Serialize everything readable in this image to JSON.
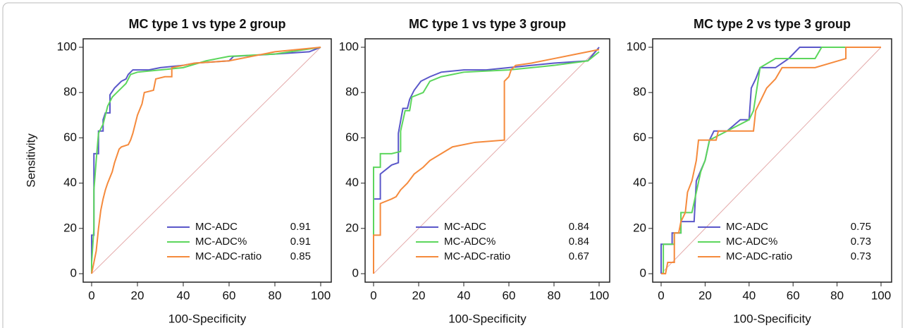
{
  "chart_data": [
    {
      "type": "line",
      "title": "MC type 1 vs type 2 group",
      "xlabel": "100-Specificity",
      "ylabel": "Sensitivity",
      "xlim": [
        0,
        100
      ],
      "ylim": [
        0,
        100
      ],
      "xticks": [
        0,
        20,
        40,
        60,
        80,
        100
      ],
      "yticks": [
        0,
        20,
        40,
        60,
        80,
        100
      ],
      "legend": "lower right",
      "series": [
        {
          "name": "MC-ADC",
          "color": "#5a57c9",
          "auc": 0.91,
          "x": [
            0,
            0,
            1,
            1,
            3,
            3,
            5,
            5,
            6,
            8,
            8,
            10,
            12,
            13,
            15,
            16,
            18,
            25,
            30,
            40,
            45,
            60,
            62,
            80,
            95,
            100
          ],
          "values": [
            0,
            17,
            17,
            53,
            53,
            63,
            63,
            68,
            71,
            71,
            79,
            82,
            84,
            85,
            86,
            88,
            90,
            90,
            91,
            92,
            93,
            94,
            96,
            97,
            98,
            100
          ]
        },
        {
          "name": "MC-ADC%",
          "color": "#5cd65c",
          "auc": 0.91,
          "x": [
            0,
            0,
            1,
            1,
            2,
            3,
            5,
            7,
            9,
            11,
            13,
            15,
            17,
            20,
            30,
            40,
            50,
            60,
            80,
            100
          ],
          "values": [
            0,
            5,
            20,
            37,
            50,
            62,
            66,
            74,
            78,
            80,
            82,
            84,
            88,
            89,
            90,
            91,
            94,
            96,
            97,
            100
          ]
        },
        {
          "name": "MC-ADC-ratio",
          "color": "#f58a3c",
          "auc": 0.85,
          "x": [
            0,
            1,
            2,
            3,
            4,
            5,
            6,
            7,
            9,
            10,
            11,
            12,
            13,
            16,
            17,
            18,
            20,
            22,
            23,
            27,
            28,
            32,
            35,
            35,
            45,
            60,
            80,
            100
          ],
          "values": [
            0,
            5,
            10,
            20,
            28,
            33,
            37,
            40,
            45,
            49,
            52,
            55,
            56,
            57,
            59,
            62,
            70,
            75,
            80,
            81,
            86,
            87,
            87,
            91,
            93,
            94,
            98,
            100
          ]
        }
      ]
    },
    {
      "type": "line",
      "title": "MC type 1 vs type 3 group",
      "xlabel": "100-Specificity",
      "xlim": [
        0,
        100
      ],
      "ylim": [
        0,
        100
      ],
      "xticks": [
        0,
        20,
        40,
        60,
        80,
        100
      ],
      "yticks": [
        0,
        20,
        40,
        60,
        80,
        100
      ],
      "legend": "lower right",
      "series": [
        {
          "name": "MC-ADC",
          "color": "#5a57c9",
          "auc": 0.84,
          "x": [
            0,
            0,
            3,
            3,
            8,
            11,
            11,
            13,
            15,
            16,
            18,
            21,
            25,
            30,
            40,
            50,
            60,
            80,
            95,
            100
          ],
          "values": [
            0,
            33,
            33,
            44,
            48,
            49,
            62,
            73,
            73,
            77,
            81,
            85,
            87,
            89,
            90,
            90,
            91,
            93,
            94,
            100
          ]
        },
        {
          "name": "MC-ADC%",
          "color": "#5cd65c",
          "auc": 0.84,
          "x": [
            0,
            0,
            3,
            3,
            8,
            12,
            12,
            14,
            16,
            17,
            22,
            25,
            30,
            40,
            60,
            80,
            95,
            100
          ],
          "values": [
            0,
            47,
            47,
            53,
            53,
            54,
            63,
            72,
            72,
            78,
            80,
            85,
            87,
            89,
            90,
            92,
            94,
            98
          ]
        },
        {
          "name": "MC-ADC-ratio",
          "color": "#f58a3c",
          "auc": 0.67,
          "x": [
            0,
            0,
            3,
            3,
            8,
            10,
            12,
            15,
            18,
            22,
            25,
            30,
            35,
            45,
            58,
            58,
            60,
            61,
            63,
            70,
            80,
            90,
            100
          ],
          "values": [
            0,
            17,
            17,
            31,
            33,
            34,
            37,
            40,
            44,
            47,
            50,
            53,
            56,
            58,
            59,
            85,
            87,
            90,
            92,
            93,
            95,
            97,
            99
          ]
        }
      ]
    },
    {
      "type": "line",
      "title": "MC type 2 vs type 3 group",
      "xlabel": "100-Specificity",
      "xlim": [
        0,
        100
      ],
      "ylim": [
        0,
        100
      ],
      "xticks": [
        0,
        20,
        40,
        60,
        80,
        100
      ],
      "yticks": [
        0,
        20,
        40,
        60,
        80,
        100
      ],
      "legend": "lower right",
      "series": [
        {
          "name": "MC-ADC",
          "color": "#5a57c9",
          "auc": 0.75,
          "x": [
            0,
            0,
            5,
            5,
            9,
            9,
            15,
            16,
            20,
            22,
            24,
            30,
            36,
            40,
            41,
            43,
            45,
            52,
            58,
            63,
            100
          ],
          "values": [
            0,
            13,
            13,
            18,
            18,
            23,
            23,
            41,
            50,
            59,
            63,
            63,
            68,
            68,
            82,
            86,
            91,
            91,
            95,
            100,
            100
          ]
        },
        {
          "name": "MC-ADC%",
          "color": "#5cd65c",
          "auc": 0.73,
          "x": [
            0,
            1,
            1,
            6,
            6,
            9,
            9,
            14,
            18,
            20,
            22,
            30,
            40,
            42,
            45,
            52,
            70,
            73,
            100
          ],
          "values": [
            0,
            0,
            13,
            13,
            18,
            18,
            27,
            27,
            45,
            50,
            59,
            63,
            68,
            72,
            91,
            95,
            95,
            100,
            100
          ]
        },
        {
          "name": "MC-ADC-ratio",
          "color": "#f58a3c",
          "auc": 0.73,
          "x": [
            0,
            2,
            3,
            6,
            6,
            8,
            9,
            11,
            12,
            14,
            16,
            17,
            25,
            26,
            42,
            43,
            48,
            52,
            55,
            70,
            84,
            84,
            100
          ],
          "values": [
            0,
            0,
            5,
            5,
            18,
            18,
            23,
            27,
            36,
            41,
            50,
            59,
            59,
            63,
            63,
            72,
            82,
            86,
            91,
            91,
            95,
            100,
            100
          ]
        }
      ]
    }
  ]
}
